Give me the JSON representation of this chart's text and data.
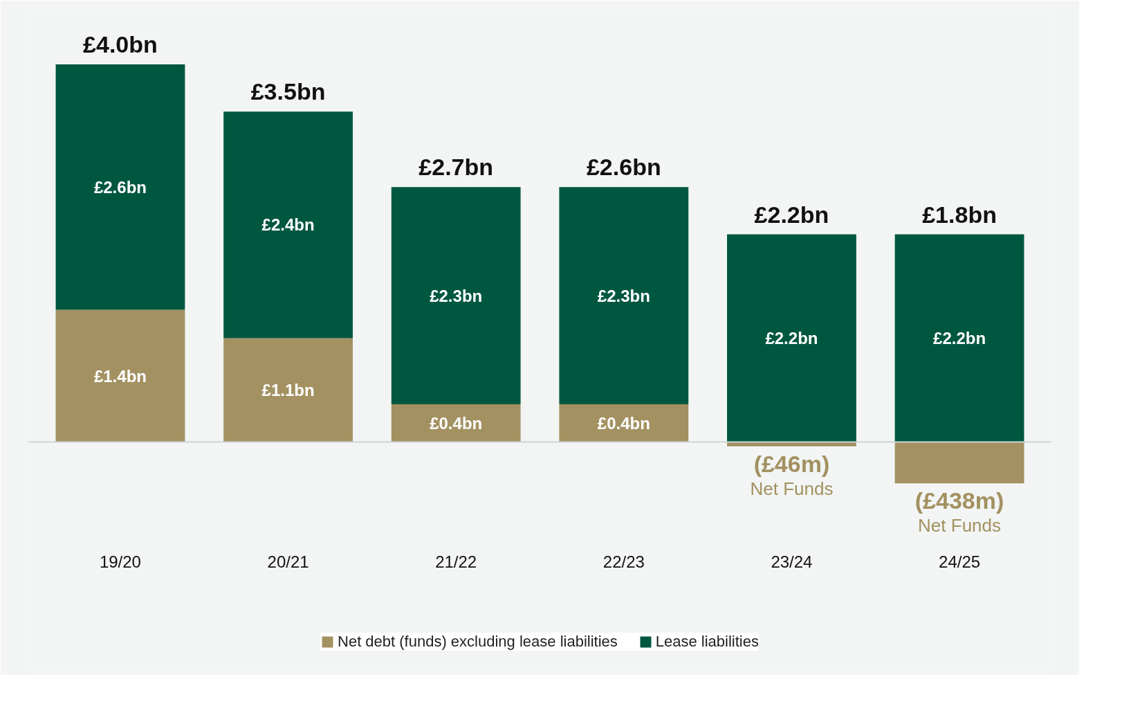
{
  "chart_data": {
    "type": "bar",
    "stacked": true,
    "categories": [
      "19/20",
      "20/21",
      "21/22",
      "22/23",
      "23/24",
      "24/25"
    ],
    "series": [
      {
        "name": "Net debt (funds) excluding lease liabilities",
        "color": "#a39161",
        "values": [
          1.4,
          1.1,
          0.4,
          0.4,
          -0.046,
          -0.438
        ],
        "value_labels": [
          "£1.4bn",
          "£1.1bn",
          "£0.4bn",
          "£0.4bn",
          null,
          null
        ]
      },
      {
        "name": "Lease liabilities",
        "color": "#00573f",
        "values": [
          2.6,
          2.4,
          2.3,
          2.3,
          2.2,
          2.2
        ],
        "value_labels": [
          "£2.6bn",
          "£2.4bn",
          "£2.3bn",
          "£2.3bn",
          "£2.2bn",
          "£2.2bn"
        ]
      }
    ],
    "totals": [
      "£4.0bn",
      "£3.5bn",
      "£2.7bn",
      "£2.6bn",
      "£2.2bn",
      "£1.8bn"
    ],
    "annotations": [
      {
        "text": "(£46m)",
        "x": "23/24",
        "y": -0.046
      },
      {
        "text": "Net Funds",
        "x": "23/24",
        "y": -0.046
      },
      {
        "text": "(£438m)",
        "x": "24/25",
        "y": -0.438
      },
      {
        "text": "Net Funds",
        "x": "24/25",
        "y": -0.438
      }
    ],
    "grid": false,
    "legend": "bottom"
  }
}
